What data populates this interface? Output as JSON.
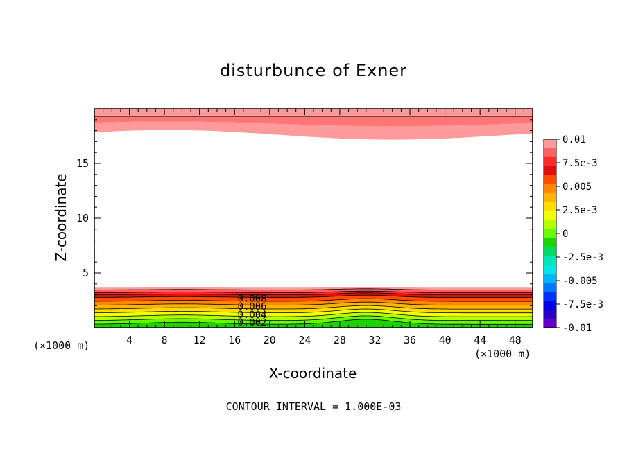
{
  "chart_data": {
    "type": "contour",
    "title": "disturbunce of Exner",
    "xlabel": "X-coordinate",
    "ylabel": "Z-coordinate",
    "x_unit_left": "(×1000 m)",
    "x_unit_right": "(×1000 m)",
    "xlim": [
      0,
      50
    ],
    "ylim": [
      0,
      20
    ],
    "x_ticks": [
      4,
      8,
      12,
      16,
      20,
      24,
      28,
      32,
      36,
      40,
      44,
      48
    ],
    "y_ticks": [
      5,
      10,
      15
    ],
    "contour_labels": [
      {
        "text": "0.008",
        "x": 18,
        "y": 2.7
      },
      {
        "text": "0.006",
        "x": 18,
        "y": 1.95
      },
      {
        "text": "0.004",
        "x": 18,
        "y": 1.2
      },
      {
        "text": "0.002",
        "x": 18,
        "y": 0.5
      }
    ],
    "colorbar": {
      "labels": [
        "0.01",
        "7.5e-3",
        "0.005",
        "2.5e-3",
        "0",
        "-2.5e-3",
        "-0.005",
        "-7.5e-3",
        "-0.01"
      ],
      "colors_top_to_bottom": [
        "#ff9a9a",
        "#ff6060",
        "#ff2a2a",
        "#e01010",
        "#ff4e00",
        "#ff8800",
        "#ffb400",
        "#ffdc00",
        "#f0ff00",
        "#b4ff00",
        "#64ff00",
        "#1ed200",
        "#00dc64",
        "#00e6b4",
        "#00e6e6",
        "#00b4ff",
        "#0078ff",
        "#0032ff",
        "#0000e6",
        "#2800c8",
        "#6400c8"
      ]
    },
    "footer": "CONTOUR INTERVAL = 1.000E-03"
  }
}
